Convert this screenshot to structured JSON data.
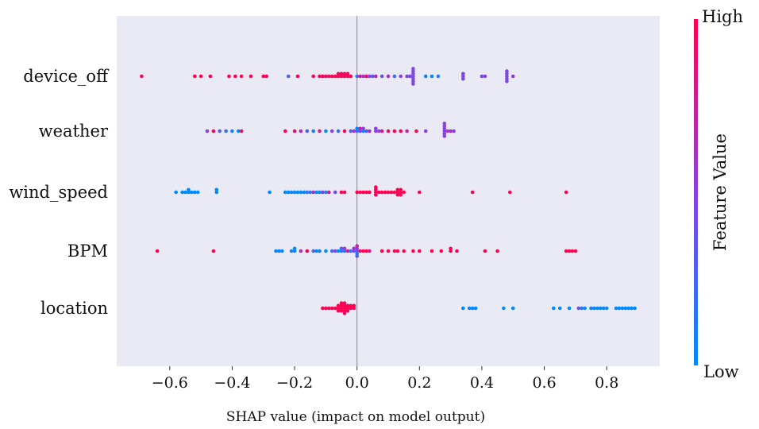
{
  "chart_data": {
    "type": "scatter",
    "subtype": "shap-beeswarm",
    "title": "",
    "xlabel": "SHAP value (impact on model output)",
    "xlim": [
      -0.77,
      0.97
    ],
    "xticks": [
      -0.6,
      -0.4,
      -0.2,
      0.0,
      0.2,
      0.4,
      0.6,
      0.8
    ],
    "xtick_labels": [
      "−0.6",
      "−0.4",
      "−0.2",
      "0.0",
      "0.2",
      "0.4",
      "0.6",
      "0.8"
    ],
    "grid": false,
    "background_color": "#e9eaf3",
    "colorbar": {
      "title": "Feature Value",
      "high_label": "High",
      "low_label": "Low",
      "high_color": "#ff0052",
      "low_color": "#008bfb"
    },
    "features": [
      {
        "name": "device_off",
        "display_label": "device_off",
        "points": [
          {
            "x": -0.69,
            "v": 1
          },
          {
            "x": -0.52,
            "v": 1
          },
          {
            "x": -0.5,
            "v": 1
          },
          {
            "x": -0.47,
            "v": 1
          },
          {
            "x": -0.41,
            "v": 1
          },
          {
            "x": -0.39,
            "v": 1
          },
          {
            "x": -0.37,
            "v": 1
          },
          {
            "x": -0.34,
            "v": 1
          },
          {
            "x": -0.3,
            "v": 1
          },
          {
            "x": -0.29,
            "v": 1
          },
          {
            "x": -0.22,
            "v": 0.3
          },
          {
            "x": -0.19,
            "v": 1
          },
          {
            "x": -0.14,
            "v": 1
          },
          {
            "x": -0.12,
            "v": 1
          },
          {
            "x": -0.11,
            "v": 1
          },
          {
            "x": -0.1,
            "v": 1
          },
          {
            "x": -0.09,
            "v": 0.9
          },
          {
            "x": -0.08,
            "v": 1
          },
          {
            "x": -0.07,
            "v": 1
          },
          {
            "x": -0.06,
            "v": 1
          },
          {
            "x": -0.06,
            "v": 0.9
          },
          {
            "x": -0.05,
            "v": 1
          },
          {
            "x": -0.05,
            "v": 1
          },
          {
            "x": -0.04,
            "v": 1
          },
          {
            "x": -0.04,
            "v": 0.95
          },
          {
            "x": -0.03,
            "v": 1
          },
          {
            "x": -0.03,
            "v": 1
          },
          {
            "x": -0.02,
            "v": 1
          },
          {
            "x": 0.0,
            "v": 0.2
          },
          {
            "x": 0.01,
            "v": 0.8
          },
          {
            "x": 0.02,
            "v": 0.6
          },
          {
            "x": 0.03,
            "v": 0.9
          },
          {
            "x": 0.04,
            "v": 0.5
          },
          {
            "x": 0.05,
            "v": 0.3
          },
          {
            "x": 0.06,
            "v": 0.7
          },
          {
            "x": 0.08,
            "v": 0.4
          },
          {
            "x": 0.1,
            "v": 0.6
          },
          {
            "x": 0.12,
            "v": 0.2
          },
          {
            "x": 0.14,
            "v": 0.5
          },
          {
            "x": 0.16,
            "v": 0.45
          },
          {
            "x": 0.17,
            "v": 0.45
          },
          {
            "x": 0.18,
            "v": 0.45
          },
          {
            "x": 0.18,
            "v": 0.45
          },
          {
            "x": 0.18,
            "v": 0.45
          },
          {
            "x": 0.18,
            "v": 0.45
          },
          {
            "x": 0.18,
            "v": 0.45
          },
          {
            "x": 0.18,
            "v": 0.45
          },
          {
            "x": 0.18,
            "v": 0.45
          },
          {
            "x": 0.22,
            "v": 0.1
          },
          {
            "x": 0.24,
            "v": 0.0
          },
          {
            "x": 0.26,
            "v": 0.1
          },
          {
            "x": 0.34,
            "v": 0.45
          },
          {
            "x": 0.34,
            "v": 0.45
          },
          {
            "x": 0.34,
            "v": 0.45
          },
          {
            "x": 0.4,
            "v": 0.45
          },
          {
            "x": 0.41,
            "v": 0.5
          },
          {
            "x": 0.48,
            "v": 0.45
          },
          {
            "x": 0.48,
            "v": 0.45
          },
          {
            "x": 0.48,
            "v": 0.45
          },
          {
            "x": 0.48,
            "v": 0.45
          },
          {
            "x": 0.48,
            "v": 0.45
          },
          {
            "x": 0.5,
            "v": 0.5
          }
        ]
      },
      {
        "name": "weather",
        "display_label": "weather",
        "points": [
          {
            "x": -0.48,
            "v": 0.5
          },
          {
            "x": -0.46,
            "v": 1
          },
          {
            "x": -0.44,
            "v": 0.3
          },
          {
            "x": -0.42,
            "v": 0.2
          },
          {
            "x": -0.4,
            "v": 0.1
          },
          {
            "x": -0.38,
            "v": 0.0
          },
          {
            "x": -0.37,
            "v": 0.9
          },
          {
            "x": -0.23,
            "v": 1
          },
          {
            "x": -0.2,
            "v": 0.9
          },
          {
            "x": -0.18,
            "v": 0.6
          },
          {
            "x": -0.16,
            "v": 0.3
          },
          {
            "x": -0.14,
            "v": 0.1
          },
          {
            "x": -0.12,
            "v": 0.8
          },
          {
            "x": -0.1,
            "v": 0.0
          },
          {
            "x": -0.08,
            "v": 0.5
          },
          {
            "x": -0.06,
            "v": 0.2
          },
          {
            "x": -0.04,
            "v": 1
          },
          {
            "x": -0.02,
            "v": 0.3
          },
          {
            "x": -0.01,
            "v": 0.6
          },
          {
            "x": 0.0,
            "v": 0.2
          },
          {
            "x": 0.0,
            "v": 0.0
          },
          {
            "x": 0.01,
            "v": 0.4
          },
          {
            "x": 0.01,
            "v": 0.7
          },
          {
            "x": 0.02,
            "v": 0.1
          },
          {
            "x": 0.02,
            "v": 0.5
          },
          {
            "x": 0.03,
            "v": 0.3
          },
          {
            "x": 0.04,
            "v": 0.6
          },
          {
            "x": 0.06,
            "v": 0.5
          },
          {
            "x": 0.06,
            "v": 0.5
          },
          {
            "x": 0.07,
            "v": 0.5
          },
          {
            "x": 0.08,
            "v": 0.8
          },
          {
            "x": 0.1,
            "v": 0.9
          },
          {
            "x": 0.12,
            "v": 1
          },
          {
            "x": 0.14,
            "v": 1
          },
          {
            "x": 0.16,
            "v": 0.7
          },
          {
            "x": 0.19,
            "v": 1
          },
          {
            "x": 0.22,
            "v": 0.5
          },
          {
            "x": 0.28,
            "v": 0.5
          },
          {
            "x": 0.28,
            "v": 0.5
          },
          {
            "x": 0.28,
            "v": 0.5
          },
          {
            "x": 0.28,
            "v": 0.5
          },
          {
            "x": 0.28,
            "v": 0.5
          },
          {
            "x": 0.28,
            "v": 0.5
          },
          {
            "x": 0.29,
            "v": 0.55
          },
          {
            "x": 0.3,
            "v": 0.6
          },
          {
            "x": 0.31,
            "v": 0.5
          }
        ]
      },
      {
        "name": "wind_speed",
        "display_label": "wind_speed",
        "points": [
          {
            "x": -0.58,
            "v": 0.0
          },
          {
            "x": -0.56,
            "v": 0.0
          },
          {
            "x": -0.55,
            "v": 0.0
          },
          {
            "x": -0.54,
            "v": 0.0
          },
          {
            "x": -0.54,
            "v": 0.0
          },
          {
            "x": -0.53,
            "v": 0.0
          },
          {
            "x": -0.52,
            "v": 0.0
          },
          {
            "x": -0.51,
            "v": 0.0
          },
          {
            "x": -0.45,
            "v": 0.0
          },
          {
            "x": -0.45,
            "v": 0.0
          },
          {
            "x": -0.28,
            "v": 0.0
          },
          {
            "x": -0.23,
            "v": 0.0
          },
          {
            "x": -0.22,
            "v": 0.0
          },
          {
            "x": -0.21,
            "v": 0.1
          },
          {
            "x": -0.2,
            "v": 0.0
          },
          {
            "x": -0.19,
            "v": 0.0
          },
          {
            "x": -0.18,
            "v": 0.0
          },
          {
            "x": -0.17,
            "v": 0.0
          },
          {
            "x": -0.16,
            "v": 0.1
          },
          {
            "x": -0.15,
            "v": 0.2
          },
          {
            "x": -0.14,
            "v": 0.6
          },
          {
            "x": -0.13,
            "v": 0.0
          },
          {
            "x": -0.12,
            "v": 0.0
          },
          {
            "x": -0.11,
            "v": 0.5
          },
          {
            "x": -0.1,
            "v": 0.0
          },
          {
            "x": -0.09,
            "v": 0.8
          },
          {
            "x": -0.07,
            "v": 0.4
          },
          {
            "x": -0.05,
            "v": 1
          },
          {
            "x": -0.04,
            "v": 1
          },
          {
            "x": 0.0,
            "v": 1
          },
          {
            "x": 0.01,
            "v": 1
          },
          {
            "x": 0.02,
            "v": 1
          },
          {
            "x": 0.03,
            "v": 1
          },
          {
            "x": 0.04,
            "v": 1
          },
          {
            "x": 0.06,
            "v": 1
          },
          {
            "x": 0.06,
            "v": 1
          },
          {
            "x": 0.06,
            "v": 1
          },
          {
            "x": 0.06,
            "v": 1
          },
          {
            "x": 0.07,
            "v": 1
          },
          {
            "x": 0.08,
            "v": 1
          },
          {
            "x": 0.09,
            "v": 1
          },
          {
            "x": 0.1,
            "v": 1
          },
          {
            "x": 0.11,
            "v": 1
          },
          {
            "x": 0.12,
            "v": 1
          },
          {
            "x": 0.13,
            "v": 1
          },
          {
            "x": 0.13,
            "v": 1
          },
          {
            "x": 0.13,
            "v": 1
          },
          {
            "x": 0.14,
            "v": 1
          },
          {
            "x": 0.14,
            "v": 1
          },
          {
            "x": 0.14,
            "v": 1
          },
          {
            "x": 0.15,
            "v": 1
          },
          {
            "x": 0.2,
            "v": 1
          },
          {
            "x": 0.37,
            "v": 1
          },
          {
            "x": 0.49,
            "v": 1
          },
          {
            "x": 0.67,
            "v": 1
          }
        ]
      },
      {
        "name": "BPM",
        "display_label": "BPM",
        "points": [
          {
            "x": -0.64,
            "v": 1
          },
          {
            "x": -0.46,
            "v": 1
          },
          {
            "x": -0.26,
            "v": 0.0
          },
          {
            "x": -0.25,
            "v": 0.1
          },
          {
            "x": -0.24,
            "v": 0.0
          },
          {
            "x": -0.21,
            "v": 0.1
          },
          {
            "x": -0.2,
            "v": 0.0
          },
          {
            "x": -0.2,
            "v": 0.0
          },
          {
            "x": -0.18,
            "v": 0.6
          },
          {
            "x": -0.16,
            "v": 1
          },
          {
            "x": -0.14,
            "v": 0.3
          },
          {
            "x": -0.13,
            "v": 0.0
          },
          {
            "x": -0.12,
            "v": 0.1
          },
          {
            "x": -0.1,
            "v": 0.0
          },
          {
            "x": -0.08,
            "v": 0.2
          },
          {
            "x": -0.07,
            "v": 0.5
          },
          {
            "x": -0.06,
            "v": 0.0
          },
          {
            "x": -0.05,
            "v": 0.1
          },
          {
            "x": -0.05,
            "v": 0.3
          },
          {
            "x": -0.04,
            "v": 0.0
          },
          {
            "x": -0.04,
            "v": 0.5
          },
          {
            "x": -0.03,
            "v": 0.8
          },
          {
            "x": -0.02,
            "v": 0.2
          },
          {
            "x": -0.01,
            "v": 0.4
          },
          {
            "x": -0.01,
            "v": 0.6
          },
          {
            "x": 0.0,
            "v": 0.3
          },
          {
            "x": 0.0,
            "v": 0.5
          },
          {
            "x": 0.0,
            "v": 0.1
          },
          {
            "x": 0.0,
            "v": 0.7
          },
          {
            "x": 0.0,
            "v": 0.3
          },
          {
            "x": 0.01,
            "v": 0.9
          },
          {
            "x": 0.02,
            "v": 1
          },
          {
            "x": 0.03,
            "v": 1
          },
          {
            "x": 0.04,
            "v": 0.8
          },
          {
            "x": 0.08,
            "v": 1
          },
          {
            "x": 0.1,
            "v": 1
          },
          {
            "x": 0.12,
            "v": 1
          },
          {
            "x": 0.13,
            "v": 1
          },
          {
            "x": 0.15,
            "v": 1
          },
          {
            "x": 0.18,
            "v": 1
          },
          {
            "x": 0.2,
            "v": 1
          },
          {
            "x": 0.24,
            "v": 1
          },
          {
            "x": 0.27,
            "v": 1
          },
          {
            "x": 0.3,
            "v": 1
          },
          {
            "x": 0.3,
            "v": 1
          },
          {
            "x": 0.32,
            "v": 1
          },
          {
            "x": 0.41,
            "v": 1
          },
          {
            "x": 0.45,
            "v": 1
          },
          {
            "x": 0.67,
            "v": 1
          },
          {
            "x": 0.68,
            "v": 1
          },
          {
            "x": 0.69,
            "v": 1
          },
          {
            "x": 0.7,
            "v": 1
          }
        ]
      },
      {
        "name": "location",
        "display_label": "location",
        "points": [
          {
            "x": -0.11,
            "v": 1
          },
          {
            "x": -0.1,
            "v": 1
          },
          {
            "x": -0.09,
            "v": 1
          },
          {
            "x": -0.08,
            "v": 1
          },
          {
            "x": -0.07,
            "v": 1
          },
          {
            "x": -0.06,
            "v": 1
          },
          {
            "x": -0.06,
            "v": 1
          },
          {
            "x": -0.06,
            "v": 1
          },
          {
            "x": -0.05,
            "v": 1
          },
          {
            "x": -0.05,
            "v": 1
          },
          {
            "x": -0.05,
            "v": 1
          },
          {
            "x": -0.05,
            "v": 1
          },
          {
            "x": -0.04,
            "v": 1
          },
          {
            "x": -0.04,
            "v": 1
          },
          {
            "x": -0.04,
            "v": 1
          },
          {
            "x": -0.04,
            "v": 1
          },
          {
            "x": -0.04,
            "v": 1
          },
          {
            "x": -0.03,
            "v": 1
          },
          {
            "x": -0.03,
            "v": 1
          },
          {
            "x": -0.03,
            "v": 1
          },
          {
            "x": -0.02,
            "v": 1
          },
          {
            "x": -0.02,
            "v": 1
          },
          {
            "x": -0.01,
            "v": 1
          },
          {
            "x": -0.01,
            "v": 1
          },
          {
            "x": 0.34,
            "v": 0.0
          },
          {
            "x": 0.36,
            "v": 0.0
          },
          {
            "x": 0.37,
            "v": 0.0
          },
          {
            "x": 0.38,
            "v": 0.0
          },
          {
            "x": 0.47,
            "v": 0.0
          },
          {
            "x": 0.5,
            "v": 0.0
          },
          {
            "x": 0.63,
            "v": 0.0
          },
          {
            "x": 0.65,
            "v": 0.0
          },
          {
            "x": 0.68,
            "v": 0.0
          },
          {
            "x": 0.71,
            "v": 0.4
          },
          {
            "x": 0.72,
            "v": 0.1
          },
          {
            "x": 0.73,
            "v": 0.0
          },
          {
            "x": 0.75,
            "v": 0.0
          },
          {
            "x": 0.76,
            "v": 0.0
          },
          {
            "x": 0.77,
            "v": 0.0
          },
          {
            "x": 0.78,
            "v": 0.0
          },
          {
            "x": 0.79,
            "v": 0.0
          },
          {
            "x": 0.8,
            "v": 0.0
          },
          {
            "x": 0.83,
            "v": 0.0
          },
          {
            "x": 0.84,
            "v": 0.0
          },
          {
            "x": 0.85,
            "v": 0.0
          },
          {
            "x": 0.86,
            "v": 0.0
          },
          {
            "x": 0.87,
            "v": 0.0
          },
          {
            "x": 0.88,
            "v": 0.0
          },
          {
            "x": 0.89,
            "v": 0.0
          }
        ]
      }
    ]
  }
}
